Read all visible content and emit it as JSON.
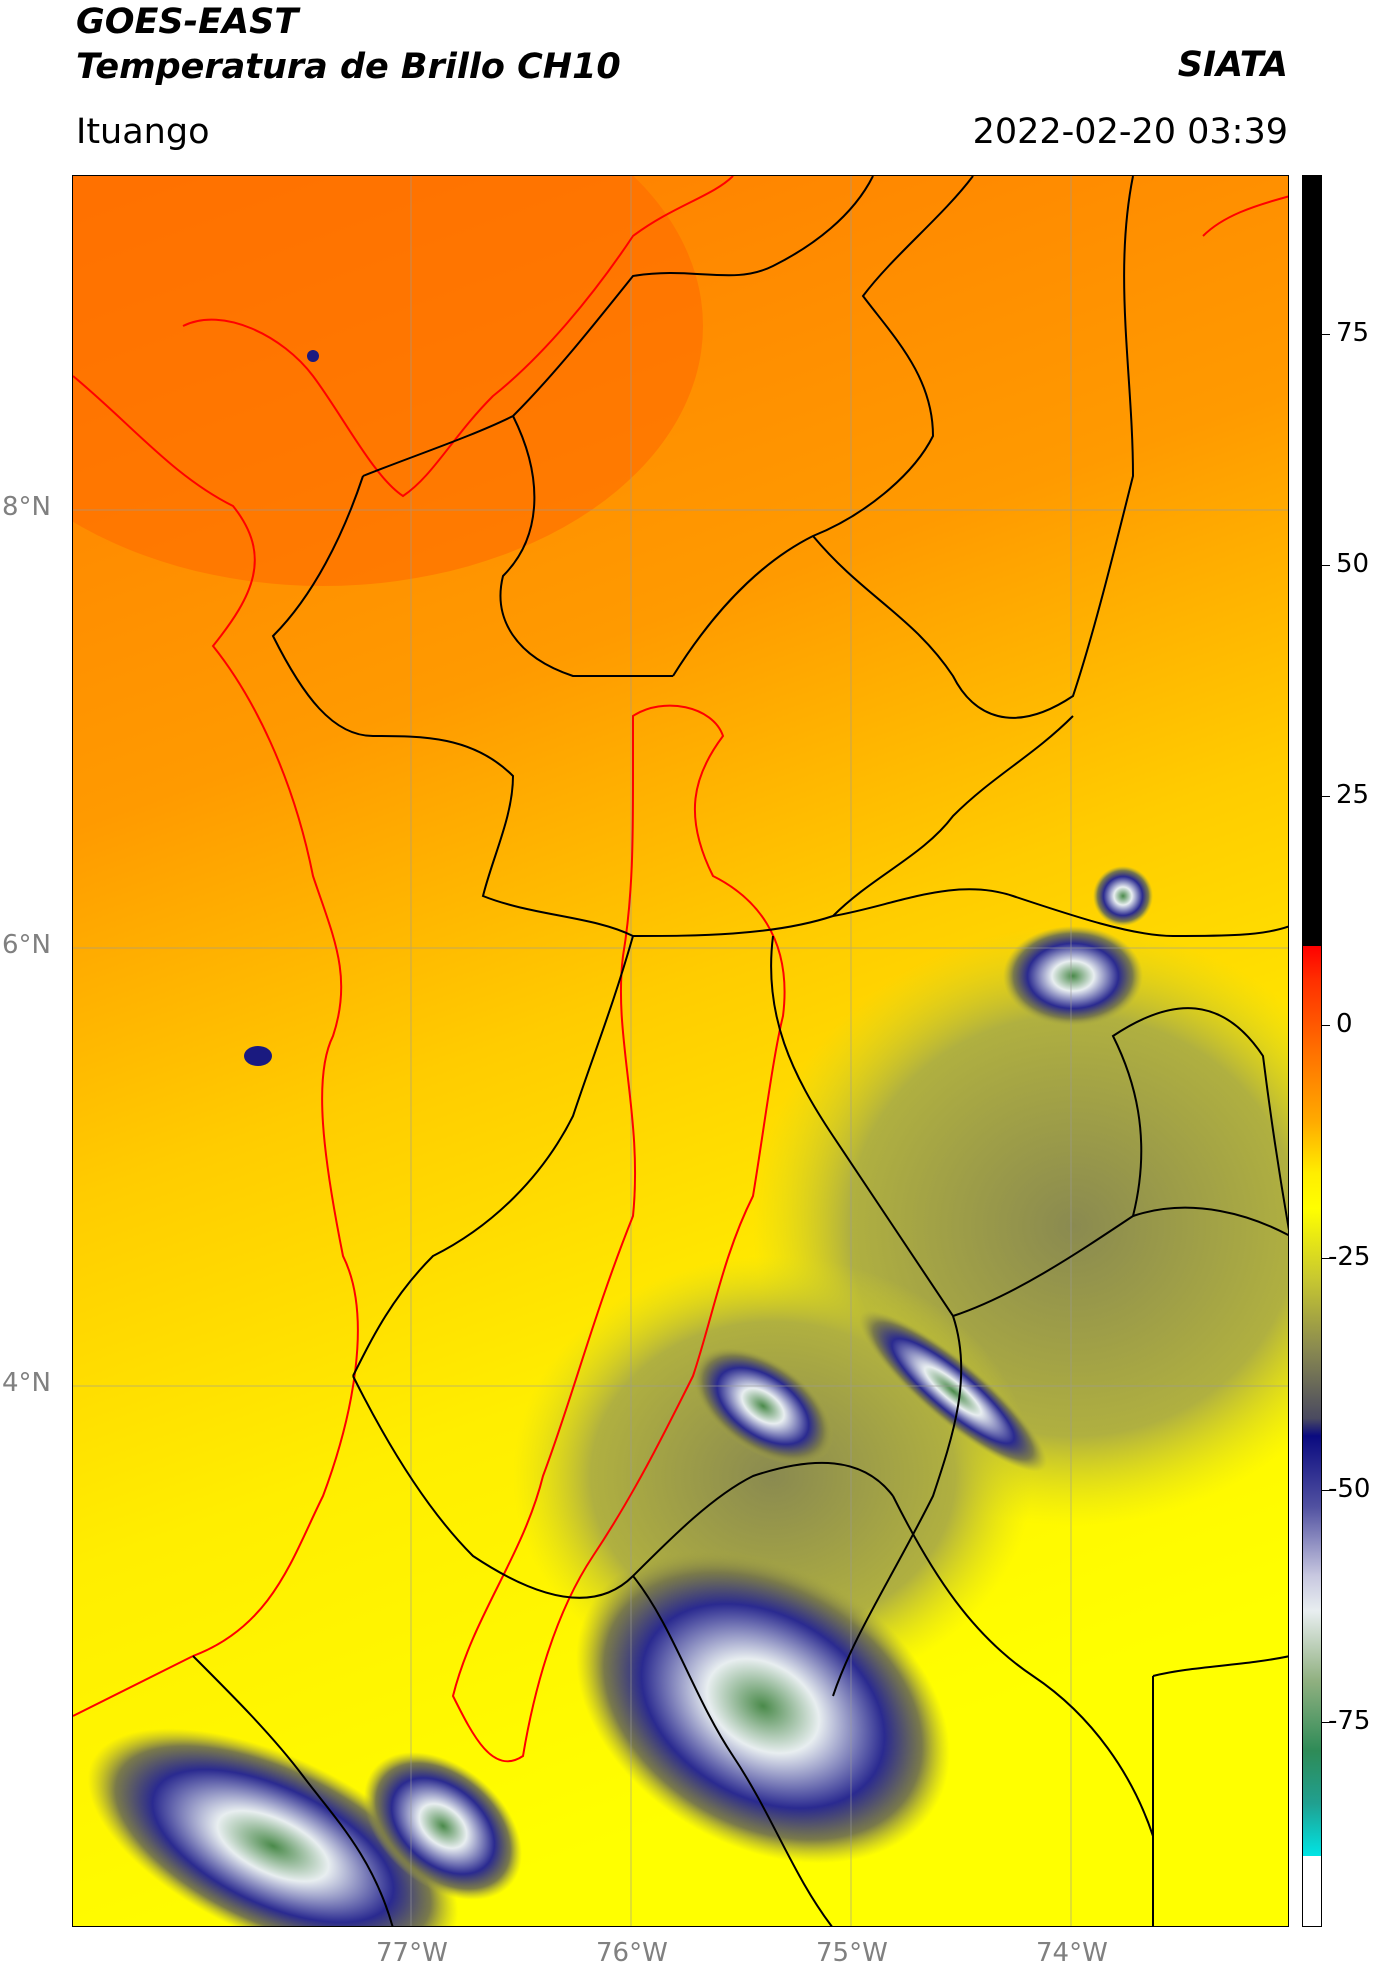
{
  "header": {
    "title_line1": "GOES-EAST",
    "title_line2": "Temperatura de Brillo CH10",
    "brand": "SIATA",
    "location": "Ituango",
    "datetime": "2022-02-20 03:39"
  },
  "map": {
    "lat_labels": [
      "8°N",
      "6°N",
      "4°N"
    ],
    "lon_labels": [
      "77°W",
      "76°W",
      "75°W",
      "74°W"
    ]
  },
  "colorbar": {
    "ticks": [
      "75",
      "50",
      "25",
      "0",
      "-25",
      "-50",
      "-75"
    ],
    "colors": {
      "black": "#000000",
      "red": "#ff0000",
      "orange": "#ff8c00",
      "yellow": "#ffff00",
      "olive": "#8b8b3a",
      "navy": "#0a0a80",
      "white": "#ffffff",
      "green": "#2e8b57",
      "cyan": "#00e5e5"
    }
  }
}
